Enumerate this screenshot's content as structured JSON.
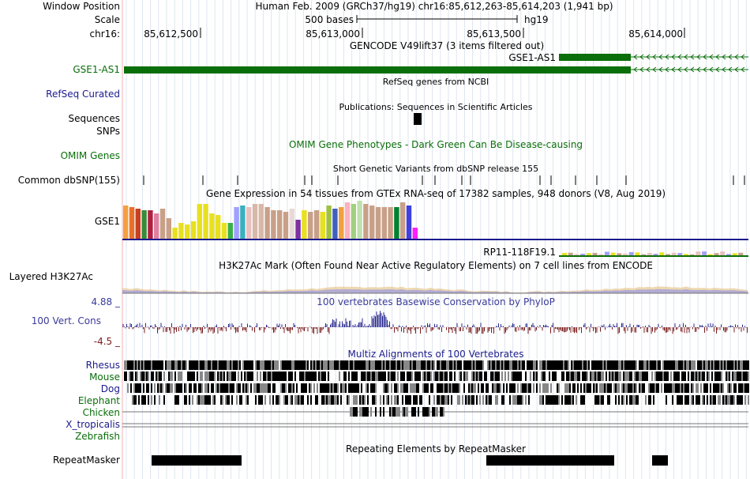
{
  "header": {
    "window_position_label": "Window Position",
    "window_position_value": "Human Feb. 2009 (GRCh37/hg19)   chr16:85,612,263-85,614,203 (1,941 bp)",
    "scale_label": "Scale",
    "scale_value": "500 bases",
    "assembly": "hg19",
    "chrom_label": "chr16:",
    "ruler_ticks": [
      "85,612,500",
      "85,613,000",
      "85,613,500",
      "85,614,000"
    ]
  },
  "tracks": {
    "gencode": {
      "title": "GENCODE V49lift37 (3 items filtered out)",
      "gene_top": "GSE1-AS1",
      "label": "GSE1-AS1",
      "color": "#0a6e0a"
    },
    "refseq": {
      "title": "RefSeq genes from NCBI",
      "label": "RefSeq Curated"
    },
    "publications": {
      "title": "Publications: Sequences in Scientific Articles",
      "label_sequences": "Sequences",
      "label_snps": "SNPs"
    },
    "omim": {
      "title": "OMIM Gene Phenotypes - Dark Green Can Be Disease-causing",
      "label": "OMIM Genes"
    },
    "dbsnp": {
      "title": "Short Genetic Variants from dbSNP release 155",
      "label": "Common dbSNP(155)"
    },
    "gtex": {
      "title": "Gene Expression in 54 tissues from GTEx RNA-seq of 17382 samples, 948 donors (V8, Aug 2019)",
      "gene_label": "GSE1",
      "second_gene": "RP11-118F19.1"
    },
    "h3k27ac": {
      "title": "H3K27Ac Mark (Often Found Near Active Regulatory Elements) on 7 cell lines from ENCODE",
      "label": "Layered H3K27Ac"
    },
    "phylop": {
      "title": "100 vertebrates Basewise Conservation by PhyloP",
      "label": "100 Vert. Cons",
      "max_label": "4.88 _",
      "min_label": "-4.5 _",
      "pos_color": "#2a2a8e",
      "neg_color": "#7a1c1c"
    },
    "multiz": {
      "title": "Multiz Alignments of 100 Vertebrates",
      "species": [
        "Rhesus",
        "Mouse",
        "Dog",
        "Elephant",
        "Chicken",
        "X_tropicalis",
        "Zebrafish"
      ]
    },
    "repeatmasker": {
      "title": "Repeating Elements by RepeatMasker",
      "label": "RepeatMasker"
    }
  }
}
